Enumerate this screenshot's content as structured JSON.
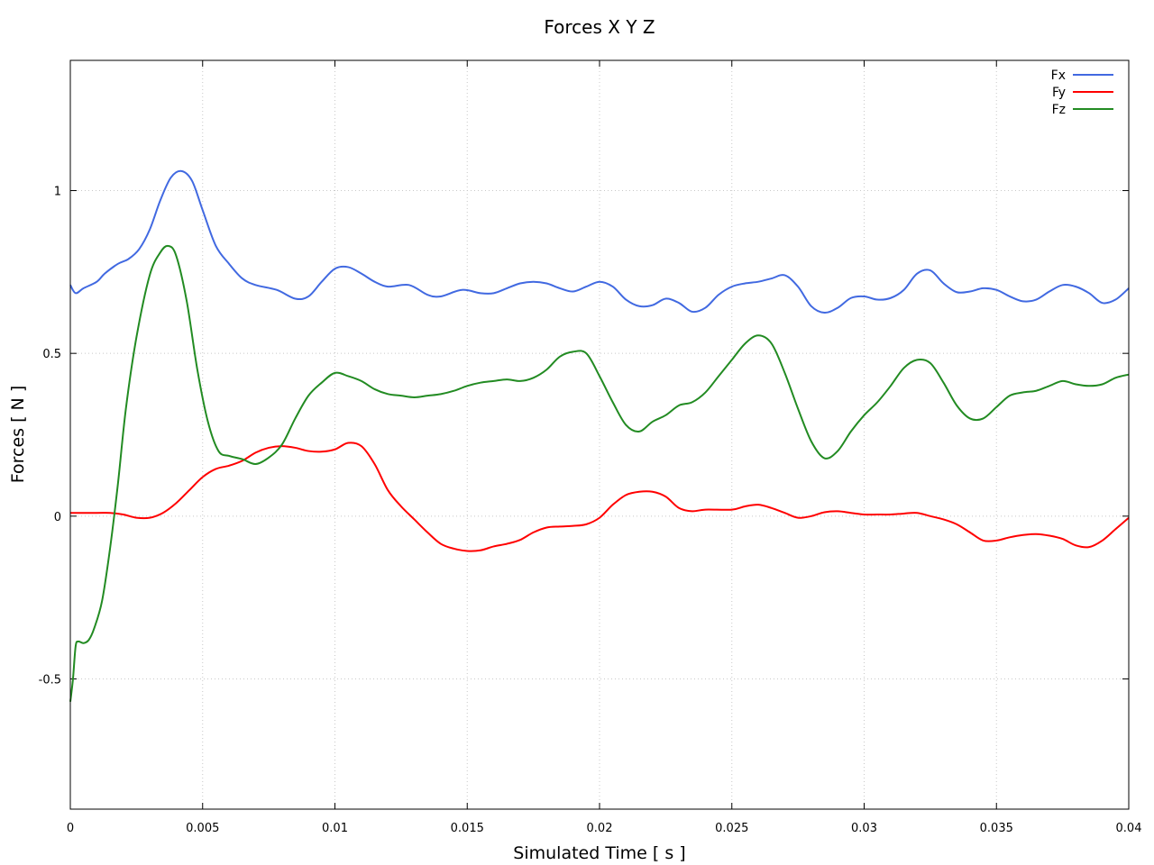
{
  "chart_data": {
    "type": "line",
    "title": "Forces X Y Z",
    "xlabel": "Simulated Time [ s ]",
    "ylabel": "Forces [ N ]",
    "xlim": [
      0,
      0.04
    ],
    "ylim": [
      -0.9,
      1.4
    ],
    "x_ticks": [
      0,
      0.005,
      0.01,
      0.015,
      0.02,
      0.025,
      0.03,
      0.035,
      0.04
    ],
    "x_tick_labels": [
      "0",
      "0.005",
      "0.01",
      "0.015",
      "0.02",
      "0.025",
      "0.03",
      "0.035",
      "0.04"
    ],
    "y_ticks": [
      -0.5,
      0,
      0.5,
      1
    ],
    "y_tick_labels": [
      "-0.5",
      "0",
      "0.5",
      "1"
    ],
    "grid": true,
    "legend_position": "top-right",
    "series": [
      {
        "name": "Fx",
        "color": "#4169e1",
        "points": [
          [
            0,
            0.71
          ],
          [
            0.0002,
            0.685
          ],
          [
            0.0005,
            0.7
          ],
          [
            0.001,
            0.72
          ],
          [
            0.0013,
            0.745
          ],
          [
            0.0018,
            0.775
          ],
          [
            0.0022,
            0.79
          ],
          [
            0.0026,
            0.82
          ],
          [
            0.003,
            0.88
          ],
          [
            0.0034,
            0.97
          ],
          [
            0.0038,
            1.04
          ],
          [
            0.0042,
            1.06
          ],
          [
            0.0046,
            1.03
          ],
          [
            0.005,
            0.94
          ],
          [
            0.0055,
            0.83
          ],
          [
            0.006,
            0.775
          ],
          [
            0.0065,
            0.73
          ],
          [
            0.007,
            0.71
          ],
          [
            0.0078,
            0.695
          ],
          [
            0.0085,
            0.668
          ],
          [
            0.009,
            0.675
          ],
          [
            0.0095,
            0.72
          ],
          [
            0.01,
            0.76
          ],
          [
            0.0105,
            0.765
          ],
          [
            0.011,
            0.745
          ],
          [
            0.0115,
            0.72
          ],
          [
            0.012,
            0.705
          ],
          [
            0.0128,
            0.71
          ],
          [
            0.0135,
            0.68
          ],
          [
            0.014,
            0.675
          ],
          [
            0.0148,
            0.695
          ],
          [
            0.0155,
            0.685
          ],
          [
            0.016,
            0.685
          ],
          [
            0.0165,
            0.7
          ],
          [
            0.017,
            0.715
          ],
          [
            0.0175,
            0.72
          ],
          [
            0.018,
            0.715
          ],
          [
            0.0185,
            0.7
          ],
          [
            0.019,
            0.69
          ],
          [
            0.0195,
            0.705
          ],
          [
            0.02,
            0.72
          ],
          [
            0.0205,
            0.705
          ],
          [
            0.021,
            0.665
          ],
          [
            0.0215,
            0.645
          ],
          [
            0.022,
            0.648
          ],
          [
            0.0225,
            0.668
          ],
          [
            0.023,
            0.655
          ],
          [
            0.0235,
            0.628
          ],
          [
            0.024,
            0.64
          ],
          [
            0.0245,
            0.68
          ],
          [
            0.025,
            0.705
          ],
          [
            0.0255,
            0.715
          ],
          [
            0.026,
            0.72
          ],
          [
            0.0265,
            0.73
          ],
          [
            0.027,
            0.74
          ],
          [
            0.0275,
            0.705
          ],
          [
            0.028,
            0.645
          ],
          [
            0.0285,
            0.625
          ],
          [
            0.029,
            0.64
          ],
          [
            0.0295,
            0.67
          ],
          [
            0.03,
            0.675
          ],
          [
            0.0305,
            0.665
          ],
          [
            0.031,
            0.67
          ],
          [
            0.0315,
            0.695
          ],
          [
            0.032,
            0.745
          ],
          [
            0.0325,
            0.755
          ],
          [
            0.033,
            0.715
          ],
          [
            0.0335,
            0.688
          ],
          [
            0.034,
            0.69
          ],
          [
            0.0345,
            0.7
          ],
          [
            0.035,
            0.695
          ],
          [
            0.0355,
            0.675
          ],
          [
            0.036,
            0.66
          ],
          [
            0.0365,
            0.665
          ],
          [
            0.037,
            0.69
          ],
          [
            0.0375,
            0.71
          ],
          [
            0.038,
            0.705
          ],
          [
            0.0385,
            0.685
          ],
          [
            0.039,
            0.655
          ],
          [
            0.0395,
            0.665
          ],
          [
            0.04,
            0.7
          ]
        ]
      },
      {
        "name": "Fy",
        "color": "#ff0000",
        "points": [
          [
            0,
            0.01
          ],
          [
            0.001,
            0.01
          ],
          [
            0.0015,
            0.01
          ],
          [
            0.002,
            0.005
          ],
          [
            0.0025,
            -0.005
          ],
          [
            0.003,
            -0.005
          ],
          [
            0.0035,
            0.01
          ],
          [
            0.004,
            0.04
          ],
          [
            0.0045,
            0.08
          ],
          [
            0.005,
            0.12
          ],
          [
            0.0055,
            0.145
          ],
          [
            0.006,
            0.155
          ],
          [
            0.0065,
            0.17
          ],
          [
            0.007,
            0.195
          ],
          [
            0.0075,
            0.21
          ],
          [
            0.008,
            0.215
          ],
          [
            0.0085,
            0.21
          ],
          [
            0.009,
            0.2
          ],
          [
            0.0095,
            0.198
          ],
          [
            0.01,
            0.205
          ],
          [
            0.0105,
            0.225
          ],
          [
            0.011,
            0.215
          ],
          [
            0.0115,
            0.16
          ],
          [
            0.012,
            0.08
          ],
          [
            0.0125,
            0.03
          ],
          [
            0.013,
            -0.01
          ],
          [
            0.0135,
            -0.05
          ],
          [
            0.014,
            -0.085
          ],
          [
            0.0145,
            -0.1
          ],
          [
            0.015,
            -0.107
          ],
          [
            0.0155,
            -0.105
          ],
          [
            0.016,
            -0.093
          ],
          [
            0.0165,
            -0.085
          ],
          [
            0.017,
            -0.073
          ],
          [
            0.0175,
            -0.05
          ],
          [
            0.018,
            -0.035
          ],
          [
            0.0185,
            -0.032
          ],
          [
            0.019,
            -0.03
          ],
          [
            0.0195,
            -0.025
          ],
          [
            0.02,
            -0.005
          ],
          [
            0.0205,
            0.035
          ],
          [
            0.021,
            0.065
          ],
          [
            0.0215,
            0.075
          ],
          [
            0.022,
            0.075
          ],
          [
            0.0225,
            0.06
          ],
          [
            0.023,
            0.025
          ],
          [
            0.0235,
            0.015
          ],
          [
            0.024,
            0.02
          ],
          [
            0.025,
            0.02
          ],
          [
            0.0255,
            0.03
          ],
          [
            0.026,
            0.035
          ],
          [
            0.0265,
            0.025
          ],
          [
            0.027,
            0.01
          ],
          [
            0.0275,
            -0.005
          ],
          [
            0.028,
            0.0
          ],
          [
            0.0285,
            0.012
          ],
          [
            0.029,
            0.015
          ],
          [
            0.0295,
            0.01
          ],
          [
            0.03,
            0.005
          ],
          [
            0.0305,
            0.005
          ],
          [
            0.031,
            0.005
          ],
          [
            0.0315,
            0.008
          ],
          [
            0.032,
            0.01
          ],
          [
            0.0325,
            0.0
          ],
          [
            0.033,
            -0.01
          ],
          [
            0.0335,
            -0.025
          ],
          [
            0.034,
            -0.05
          ],
          [
            0.0345,
            -0.075
          ],
          [
            0.035,
            -0.075
          ],
          [
            0.0355,
            -0.065
          ],
          [
            0.036,
            -0.058
          ],
          [
            0.0365,
            -0.055
          ],
          [
            0.037,
            -0.06
          ],
          [
            0.0375,
            -0.07
          ],
          [
            0.038,
            -0.09
          ],
          [
            0.0385,
            -0.095
          ],
          [
            0.039,
            -0.075
          ],
          [
            0.0395,
            -0.04
          ],
          [
            0.04,
            -0.005
          ]
        ]
      },
      {
        "name": "Fz",
        "color": "#228b22",
        "points": [
          [
            0,
            -0.57
          ],
          [
            0.0001,
            -0.5
          ],
          [
            0.0002,
            -0.4
          ],
          [
            0.0003,
            -0.385
          ],
          [
            0.0005,
            -0.39
          ],
          [
            0.0007,
            -0.38
          ],
          [
            0.0009,
            -0.345
          ],
          [
            0.0012,
            -0.26
          ],
          [
            0.0015,
            -0.1
          ],
          [
            0.0018,
            0.1
          ],
          [
            0.0021,
            0.33
          ],
          [
            0.0025,
            0.55
          ],
          [
            0.003,
            0.74
          ],
          [
            0.0034,
            0.81
          ],
          [
            0.0037,
            0.83
          ],
          [
            0.004,
            0.8
          ],
          [
            0.0044,
            0.66
          ],
          [
            0.0048,
            0.45
          ],
          [
            0.0052,
            0.29
          ],
          [
            0.0056,
            0.2
          ],
          [
            0.006,
            0.185
          ],
          [
            0.0065,
            0.175
          ],
          [
            0.007,
            0.16
          ],
          [
            0.0075,
            0.18
          ],
          [
            0.008,
            0.22
          ],
          [
            0.0085,
            0.3
          ],
          [
            0.009,
            0.37
          ],
          [
            0.0095,
            0.41
          ],
          [
            0.01,
            0.44
          ],
          [
            0.0105,
            0.43
          ],
          [
            0.011,
            0.415
          ],
          [
            0.0115,
            0.39
          ],
          [
            0.012,
            0.375
          ],
          [
            0.0125,
            0.37
          ],
          [
            0.013,
            0.365
          ],
          [
            0.0135,
            0.37
          ],
          [
            0.014,
            0.375
          ],
          [
            0.0145,
            0.385
          ],
          [
            0.015,
            0.4
          ],
          [
            0.0155,
            0.41
          ],
          [
            0.016,
            0.415
          ],
          [
            0.0165,
            0.42
          ],
          [
            0.017,
            0.415
          ],
          [
            0.0175,
            0.425
          ],
          [
            0.018,
            0.45
          ],
          [
            0.0185,
            0.49
          ],
          [
            0.019,
            0.505
          ],
          [
            0.0195,
            0.5
          ],
          [
            0.02,
            0.43
          ],
          [
            0.0205,
            0.35
          ],
          [
            0.021,
            0.28
          ],
          [
            0.0215,
            0.26
          ],
          [
            0.022,
            0.29
          ],
          [
            0.0225,
            0.31
          ],
          [
            0.023,
            0.34
          ],
          [
            0.0235,
            0.35
          ],
          [
            0.024,
            0.38
          ],
          [
            0.0245,
            0.43
          ],
          [
            0.025,
            0.48
          ],
          [
            0.0255,
            0.53
          ],
          [
            0.026,
            0.555
          ],
          [
            0.0265,
            0.53
          ],
          [
            0.027,
            0.44
          ],
          [
            0.0275,
            0.33
          ],
          [
            0.028,
            0.23
          ],
          [
            0.0285,
            0.178
          ],
          [
            0.029,
            0.2
          ],
          [
            0.0295,
            0.26
          ],
          [
            0.03,
            0.31
          ],
          [
            0.0305,
            0.35
          ],
          [
            0.031,
            0.4
          ],
          [
            0.0315,
            0.455
          ],
          [
            0.032,
            0.48
          ],
          [
            0.0325,
            0.47
          ],
          [
            0.033,
            0.41
          ],
          [
            0.0335,
            0.34
          ],
          [
            0.034,
            0.3
          ],
          [
            0.0345,
            0.3
          ],
          [
            0.035,
            0.335
          ],
          [
            0.0355,
            0.37
          ],
          [
            0.036,
            0.38
          ],
          [
            0.0365,
            0.385
          ],
          [
            0.037,
            0.4
          ],
          [
            0.0375,
            0.415
          ],
          [
            0.038,
            0.405
          ],
          [
            0.0385,
            0.4
          ],
          [
            0.039,
            0.405
          ],
          [
            0.0395,
            0.425
          ],
          [
            0.04,
            0.435
          ]
        ]
      }
    ]
  }
}
